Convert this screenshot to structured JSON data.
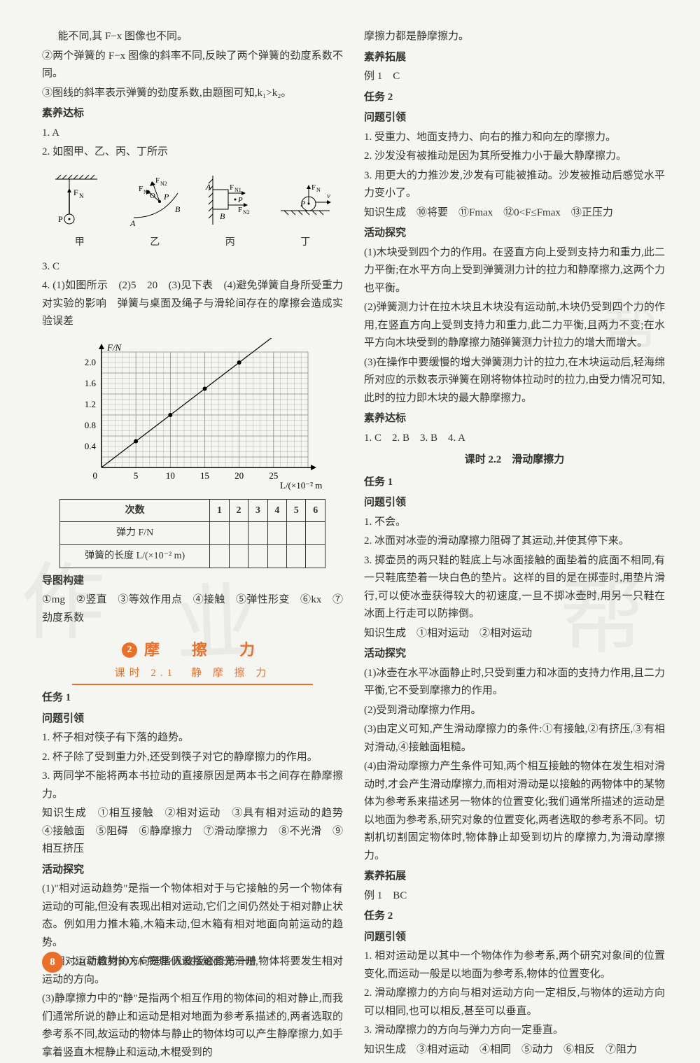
{
  "left": {
    "intro1": "能不同,其 F−x 图像也不同。",
    "intro2": "②两个弹簧的 F−x 图像的斜率不同,反映了两个弹簧的劲度系数不同。",
    "intro3": "③图线的斜率表示弹簧的劲度系数,由题图可知,k₁>k₂。",
    "suyang_db": "素养达标",
    "q1": "1. A",
    "q2": "2. 如图甲、乙、丙、丁所示",
    "diag_labels": [
      "甲",
      "乙",
      "丙",
      "丁"
    ],
    "q3": "3. C",
    "q4": "4. (1)如图所示　(2)5　20　(3)见下表　(4)避免弹簧自身所受重力对实验的影响　弹簧与桌面及绳子与滑轮间存在的摩擦会造成实验误差",
    "chart": {
      "ylabel": "F/N",
      "xlabel": "L/(×10⁻² m)",
      "yrange": [
        0,
        2.2
      ],
      "yticks": [
        0.4,
        0.8,
        1.2,
        1.6,
        2.0
      ],
      "xrange": [
        0,
        30
      ],
      "xticks": [
        5,
        10,
        15,
        20,
        25
      ],
      "points": [
        [
          5,
          0.5
        ],
        [
          10,
          1.0
        ],
        [
          15,
          1.5
        ],
        [
          20,
          2.0
        ]
      ],
      "grid_color": "#888",
      "axis_color": "#000",
      "point_color": "#000",
      "bg": "#f9f9f7"
    },
    "table": {
      "headers": [
        "次数",
        "1",
        "2",
        "3",
        "4",
        "5",
        "6"
      ],
      "row_labels": [
        "弹力 F/N",
        "弹簧的长度 L/(×10⁻² m)"
      ]
    },
    "daotu": "导图构建",
    "daotu_items": "①mg　②竖直　③等效作用点　④接触　⑤弹性形变　⑥kx　⑦劲度系数",
    "banner": {
      "num": "2",
      "title": "摩　擦　力",
      "sub": "课时 2.1　静 摩 擦 力"
    },
    "task1": "任务 1",
    "wtyl": "问题引领",
    "t1_1": "1. 杯子相对筷子有下落的趋势。",
    "t1_2": "2. 杯子除了受到重力外,还受到筷子对它的静摩擦力的作用。",
    "t1_3": "3. 两同学不能将两本书拉动的直接原因是两本书之间存在静摩擦力。",
    "zssc": "知识生成　①相互接触　②相对运动　③具有相对运动的趋势　④接触面　⑤阻碍　⑥静摩擦力　⑦滑动摩擦力　⑧不光滑　⑨相互挤压",
    "hdtj": "活动探究",
    "hd1": "(1)\"相对运动趋势\"是指一个物体相对于与它接触的另一个物体有运动的可能,但没有表现出相对运动,它们之间仍然处于相对静止状态。例如用力推木箱,木箱未动,但木箱有相对地面向前运动的趋势。",
    "hd2": "(2)相对运动趋势的方向是指假设接触面光滑时,物体将要发生相对运动的方向。",
    "hd3": "(3)静摩擦力中的\"静\"是指两个相互作用的物体间的相对静止,而我们通常所说的静止和运动是相对地面为参考系描述的,两者选取的参考系不同,故运动的物体与静止的物体均可以产生静摩擦力,如手拿着竖直木棍静止和运动,木棍受到的"
  },
  "right": {
    "cont": "摩擦力都是静摩擦力。",
    "sytz": "素养拓展",
    "ex1": "例 1　C",
    "task2": "任务 2",
    "wtyl": "问题引领",
    "r1": "1. 受重力、地面支持力、向右的推力和向左的摩擦力。",
    "r2": "2. 沙发没有被推动是因为其所受推力小于最大静摩擦力。",
    "r3": "3. 用更大的力推沙发,沙发有可能被推动。沙发被推动后感觉水平力变小了。",
    "zssc2": "知识生成　⑩将要　⑪Fmax　⑫0<F≤Fmax　⑬正压力",
    "hdtj2": "活动探究",
    "hd1": "(1)木块受到四个力的作用。在竖直方向上受到支持力和重力,此二力平衡;在水平方向上受到弹簧测力计的拉力和静摩擦力,这两个力也平衡。",
    "hd2": "(2)弹簧测力计在拉木块且木块没有运动前,木块仍受到四个力的作用,在竖直方向上受到支持力和重力,此二力平衡,且两力不变;在水平方向木块受到的静摩擦力随弹簧测力计拉力的增大而增大。",
    "hd3": "(3)在操作中要缓慢的增大弹簧测力计的拉力,在木块运动后,轻海绵所对应的示数表示弹簧在刚将物体拉动时的拉力,由受力情况可知,此时的拉力即木块的最大静摩擦力。",
    "sydb2": "素养达标",
    "ans2": "1. C　2. B　3. B　4. A",
    "sub22": "课时 2.2　滑动摩擦力",
    "task1b": "任务 1",
    "wtylb": "问题引领",
    "b1": "1. 不会。",
    "b2": "2. 冰面对冰壶的滑动摩擦力阻碍了其运动,并使其停下来。",
    "b3": "3. 掷壶员的两只鞋的鞋底上与冰面接触的面垫着的底面不相同,有一只鞋底垫着一块白色的垫片。这样的目的是在掷壶时,用垫片滑行,可以使冰壶获得较大的初速度,一旦不掷冰壶时,用另一只鞋在冰面上行走可以防摔倒。",
    "zssc3": "知识生成　①相对运动　②相对运动",
    "hdtj3": "活动探究",
    "c1": "(1)冰壶在水平冰面静止时,只受到重力和冰面的支持力作用,且二力平衡,它不受到摩擦力的作用。",
    "c2": "(2)受到滑动摩擦力作用。",
    "c3": "(3)由定义可知,产生滑动摩擦力的条件:①有接触,②有挤压,③有相对滑动,④接触面粗糙。",
    "c4": "(4)由滑动摩擦力产生条件可知,两个相互接触的物体在发生相对滑动时,才会产生滑动摩擦力,而相对滑动是以接触的两物体中的某物体为参考系来描述另一物体的位置变化;我们通常所描述的运动是以地面为参考系,研究对象的位置变化,两者选取的参考系不同。切割机切割固定物体时,物体静止却受到切片的摩擦力,为滑动摩擦力。",
    "sytz2": "素养拓展",
    "ex1b": "例 1　BC",
    "task2b": "任务 2",
    "wtyl2b": "问题引领",
    "d1": "1. 相对运动是以其中一个物体作为参考系,两个研究对象间的位置变化,而运动一般是以地面为参考系,物体的位置变化。",
    "d2": "2. 滑动摩擦力的方向与相对运动方向一定相反,与物体的运动方向可以相同,也可以相反,甚至可以垂直。",
    "d3": "3. 滑动摩擦力的方向与弹力方向一定垂直。",
    "zssc4": "知识生成　③相对运动　④相同　⑤动力　⑥相反　⑦阻力"
  },
  "footer": {
    "page": "8",
    "text": "21(新教材)DXA·物理·人教版必修第一册"
  }
}
